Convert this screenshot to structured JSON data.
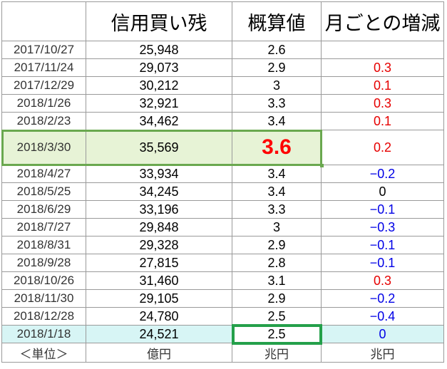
{
  "headers": [
    "",
    "信用買い残",
    "概算値",
    "月ごとの増減"
  ],
  "rows": [
    {
      "date": "2017/10/27",
      "balance": "25,948",
      "estimate": "2.6",
      "change": "",
      "sign": "none"
    },
    {
      "date": "2017/11/24",
      "balance": "29,073",
      "estimate": "2.9",
      "change": "0.3",
      "sign": "pos"
    },
    {
      "date": "2017/12/29",
      "balance": "30,212",
      "estimate": "3",
      "change": "0.1",
      "sign": "pos"
    },
    {
      "date": "2018/1/26",
      "balance": "32,921",
      "estimate": "3.3",
      "change": "0.3",
      "sign": "pos"
    },
    {
      "date": "2018/2/23",
      "balance": "34,462",
      "estimate": "3.4",
      "change": "0.1",
      "sign": "pos"
    },
    {
      "date": "2018/3/30",
      "balance": "35,569",
      "estimate": "3.6",
      "change": "0.2",
      "sign": "pos",
      "highlight": true
    },
    {
      "date": "2018/4/27",
      "balance": "33,934",
      "estimate": "3.4",
      "change": "−0.2",
      "sign": "neg"
    },
    {
      "date": "2018/5/25",
      "balance": "34,245",
      "estimate": "3.4",
      "change": "0",
      "sign": "zero"
    },
    {
      "date": "2018/6/29",
      "balance": "33,196",
      "estimate": "3.3",
      "change": "−0.1",
      "sign": "neg"
    },
    {
      "date": "2018/7/27",
      "balance": "29,848",
      "estimate": "3",
      "change": "−0.3",
      "sign": "neg"
    },
    {
      "date": "2018/8/31",
      "balance": "29,328",
      "estimate": "2.9",
      "change": "−0.1",
      "sign": "neg"
    },
    {
      "date": "2018/9/28",
      "balance": "27,815",
      "estimate": "2.8",
      "change": "−0.1",
      "sign": "neg"
    },
    {
      "date": "2018/10/26",
      "balance": "31,460",
      "estimate": "3.1",
      "change": "0.3",
      "sign": "pos"
    },
    {
      "date": "2018/11/30",
      "balance": "29,105",
      "estimate": "2.9",
      "change": "−0.2",
      "sign": "neg"
    },
    {
      "date": "2018/12/28",
      "balance": "24,780",
      "estimate": "2.5",
      "change": "−0.4",
      "sign": "neg"
    },
    {
      "date": "2018/1/18",
      "balance": "24,521",
      "estimate": "2.5",
      "change": "0",
      "sign": "zero-blue",
      "last": true
    }
  ],
  "units": [
    "＜単位＞",
    "億円",
    "兆円",
    "兆円"
  ],
  "colors": {
    "positive": "#e60000",
    "negative": "#0000e6",
    "highlight_fill": "#e7f3d6",
    "highlight_border": "#6aa84f",
    "last_row_fill": "#d7f5f5",
    "last_cell_border": "#24a04a"
  }
}
